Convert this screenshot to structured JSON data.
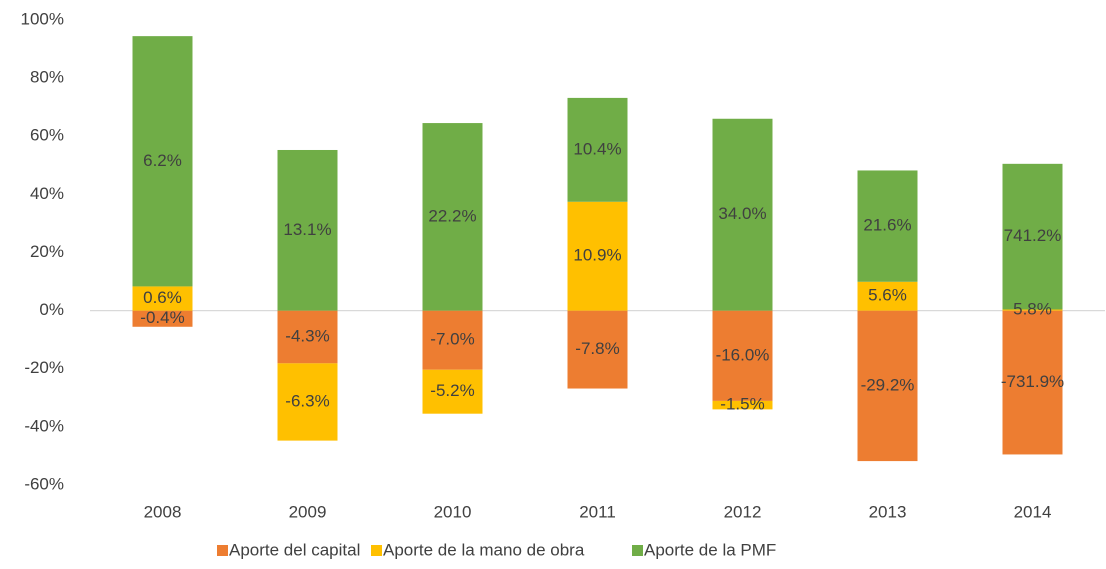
{
  "chart_data": {
    "type": "bar_stacked_100",
    "categories": [
      "2008",
      "2009",
      "2010",
      "2011",
      "2012",
      "2013",
      "2014"
    ],
    "series": [
      {
        "name": "Aporte del capital",
        "color": "#ED7D31",
        "values": [
          -0.4,
          -4.3,
          -7.0,
          -7.8,
          -16.0,
          -29.2,
          -731.9
        ],
        "value_labels": [
          "-0.4%",
          "-4.3%",
          "-7.0%",
          "-7.8%",
          "-16.0%",
          "-29.2%",
          "-731.9%"
        ]
      },
      {
        "name": "Aporte de la mano de obra",
        "color": "#FFC000",
        "values": [
          0.6,
          -6.3,
          -5.2,
          10.9,
          -1.5,
          5.6,
          5.8
        ],
        "value_labels": [
          "0.6%",
          "-6.3%",
          "-5.2%",
          "10.9%",
          "-1.5%",
          "5.6%",
          "5.8%"
        ]
      },
      {
        "name": "Aporte de la PMF",
        "color": "#70AD47",
        "values": [
          6.2,
          13.1,
          22.2,
          10.4,
          34.0,
          21.6,
          741.2
        ],
        "value_labels": [
          "6.2%",
          "13.1%",
          "22.2%",
          "10.4%",
          "34.0%",
          "21.6%",
          "741.2%"
        ]
      }
    ],
    "ylim": [
      -60,
      100
    ],
    "yticks": [
      {
        "value": 100,
        "label": "100%"
      },
      {
        "value": 80,
        "label": "80%"
      },
      {
        "value": 60,
        "label": "60%"
      },
      {
        "value": 40,
        "label": "40%"
      },
      {
        "value": 20,
        "label": "20%"
      },
      {
        "value": 0,
        "label": "0%"
      },
      {
        "value": -20,
        "label": "-20%"
      },
      {
        "value": -40,
        "label": "-40%"
      },
      {
        "value": -60,
        "label": "-60%"
      }
    ],
    "legend": "bottom"
  }
}
